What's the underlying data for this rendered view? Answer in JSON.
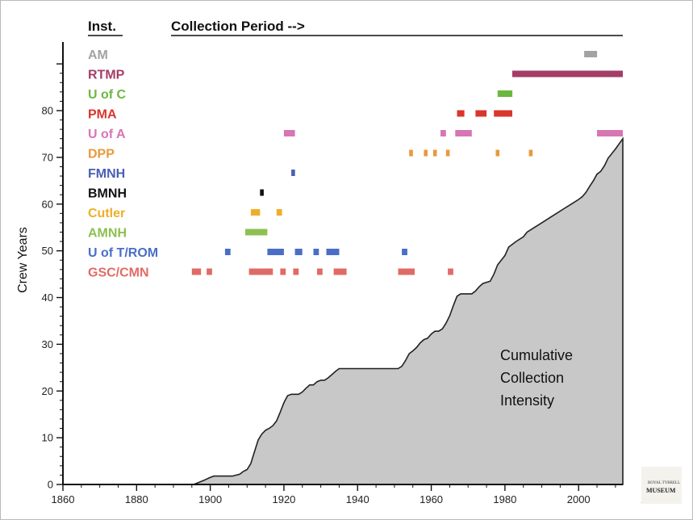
{
  "chart_data": {
    "type": "area",
    "header": {
      "inst": "Inst.",
      "period": "Collection Period -->"
    },
    "ylabel": "Crew Years",
    "xlim": [
      1860,
      2012
    ],
    "ylim": [
      0,
      90
    ],
    "x_ticks": [
      "1860",
      "1880",
      "1900",
      "1920",
      "1940",
      "1960",
      "1980",
      "2000",
      "2020"
    ],
    "y_ticks": [
      "0",
      "10",
      "20",
      "30",
      "40",
      "50",
      "60",
      "70",
      "80"
    ],
    "annotation": [
      "Cumulative",
      "Collection",
      "Intensity"
    ],
    "area_color": "#c8c8c8",
    "cumulative": [
      [
        1895.5,
        0
      ],
      [
        1898,
        0.8
      ],
      [
        1900,
        1.5
      ],
      [
        1901,
        1.8
      ],
      [
        1902,
        1.8
      ],
      [
        1906,
        1.8
      ],
      [
        1908,
        2.2
      ],
      [
        1909,
        2.8
      ],
      [
        1910,
        3.2
      ],
      [
        1911,
        4.5
      ],
      [
        1912,
        7
      ],
      [
        1913,
        9.5
      ],
      [
        1914,
        10.8
      ],
      [
        1915,
        11.6
      ],
      [
        1916,
        12
      ],
      [
        1917,
        12.6
      ],
      [
        1918,
        13.6
      ],
      [
        1919,
        15.5
      ],
      [
        1920,
        17.5
      ],
      [
        1921,
        19
      ],
      [
        1922,
        19.3
      ],
      [
        1924,
        19.3
      ],
      [
        1925,
        19.8
      ],
      [
        1926,
        20.6
      ],
      [
        1927,
        21.3
      ],
      [
        1928,
        21.3
      ],
      [
        1929,
        22
      ],
      [
        1930,
        22.3
      ],
      [
        1931,
        22.3
      ],
      [
        1932,
        22.8
      ],
      [
        1933,
        23.5
      ],
      [
        1934,
        24.2
      ],
      [
        1935,
        24.8
      ],
      [
        1946,
        24.8
      ],
      [
        1950,
        24.8
      ],
      [
        1951,
        24.8
      ],
      [
        1952,
        25.3
      ],
      [
        1953,
        26.5
      ],
      [
        1954,
        28
      ],
      [
        1955,
        28.6
      ],
      [
        1956,
        29.3
      ],
      [
        1957,
        30.3
      ],
      [
        1958,
        31
      ],
      [
        1959,
        31.3
      ],
      [
        1960,
        32.2
      ],
      [
        1961,
        32.8
      ],
      [
        1962,
        32.8
      ],
      [
        1963,
        33.3
      ],
      [
        1964,
        34.5
      ],
      [
        1965,
        36.1
      ],
      [
        1966,
        38.3
      ],
      [
        1967,
        40.3
      ],
      [
        1968,
        40.8
      ],
      [
        1971,
        40.8
      ],
      [
        1972,
        41.4
      ],
      [
        1973,
        42.3
      ],
      [
        1974,
        43
      ],
      [
        1976,
        43.5
      ],
      [
        1977,
        45
      ],
      [
        1978,
        47
      ],
      [
        1980,
        49
      ],
      [
        1981,
        50.8
      ],
      [
        1983,
        52
      ],
      [
        1985,
        53
      ],
      [
        1986,
        54
      ],
      [
        1988,
        55
      ],
      [
        1990,
        56
      ],
      [
        1992,
        57
      ],
      [
        1994,
        58
      ],
      [
        1996,
        59
      ],
      [
        1998,
        60
      ],
      [
        2000,
        61
      ],
      [
        2001,
        61.6
      ],
      [
        2002,
        62.5
      ],
      [
        2003,
        63.8
      ],
      [
        2004,
        65
      ],
      [
        2005,
        66.4
      ],
      [
        2006,
        67
      ],
      [
        2007,
        68.2
      ],
      [
        2008,
        69.8
      ],
      [
        2010,
        71.8
      ],
      [
        2012,
        74
      ]
    ],
    "institutions": [
      {
        "name": "AM",
        "color": "#a3a3a3",
        "periods": [
          [
            2001.5,
            2005
          ]
        ]
      },
      {
        "name": "RTMP",
        "color": "#a43d67",
        "periods": [
          [
            1982,
            2012
          ]
        ]
      },
      {
        "name": "U of C",
        "color": "#6cb73f",
        "periods": [
          [
            1978,
            1982
          ]
        ]
      },
      {
        "name": "PMA",
        "color": "#d9362c",
        "periods": [
          [
            1967,
            1969
          ],
          [
            1972,
            1975
          ],
          [
            1977,
            1982
          ]
        ]
      },
      {
        "name": "U of A",
        "color": "#d875b3",
        "periods": [
          [
            1920,
            1923
          ],
          [
            1962.5,
            1964
          ],
          [
            1966.5,
            1971
          ],
          [
            2005,
            2012
          ]
        ]
      },
      {
        "name": "DPP",
        "color": "#e89a3c",
        "periods": [
          [
            1954,
            1955
          ],
          [
            1958,
            1959
          ],
          [
            1960.5,
            1961.5
          ],
          [
            1964,
            1965
          ],
          [
            1977.5,
            1978.5
          ],
          [
            1986.5,
            1987.5
          ]
        ]
      },
      {
        "name": "FMNH",
        "color": "#4a5fb5",
        "periods": [
          [
            1922,
            1923
          ]
        ]
      },
      {
        "name": "BMNH",
        "color": "#111111",
        "periods": [
          [
            1913.5,
            1914.5
          ]
        ]
      },
      {
        "name": "Cutler",
        "color": "#efae2a",
        "periods": [
          [
            1911,
            1913.5
          ],
          [
            1918,
            1919.5
          ]
        ]
      },
      {
        "name": "AMNH",
        "color": "#8dc050",
        "periods": [
          [
            1909.5,
            1915.5
          ]
        ]
      },
      {
        "name": "U of T/ROM",
        "color": "#4a6ec8",
        "periods": [
          [
            1904,
            1905.5
          ],
          [
            1915.5,
            1920
          ],
          [
            1923,
            1925
          ],
          [
            1928,
            1929.5
          ],
          [
            1931.5,
            1935
          ],
          [
            1952,
            1953.5
          ]
        ]
      },
      {
        "name": "GSC/CMN",
        "color": "#e06b66",
        "periods": [
          [
            1895,
            1897.5
          ],
          [
            1899,
            1900.5
          ],
          [
            1910.5,
            1917
          ],
          [
            1919,
            1920.5
          ],
          [
            1922.5,
            1924
          ],
          [
            1929,
            1930.5
          ],
          [
            1933.5,
            1937
          ],
          [
            1951,
            1955.5
          ],
          [
            1964.5,
            1966
          ]
        ]
      }
    ]
  },
  "logo": {
    "line1": "ROYAL TYRRELL",
    "line2": "MUSEUM"
  }
}
